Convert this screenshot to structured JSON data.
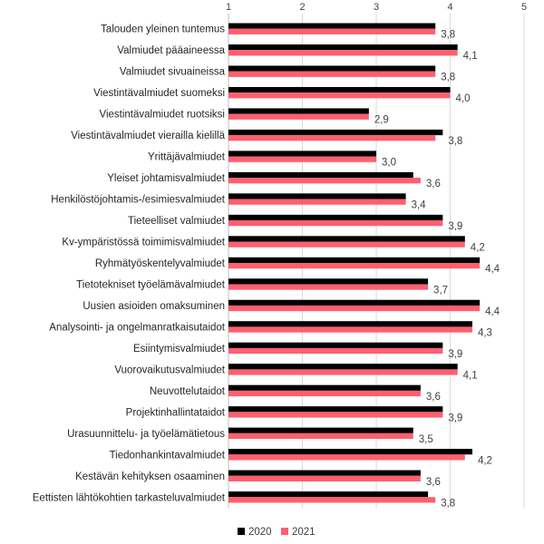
{
  "chart_data": {
    "type": "bar",
    "orientation": "horizontal",
    "title": "",
    "xlabel": "",
    "ylabel": "",
    "xlim": [
      1,
      5
    ],
    "xticks": [
      "1",
      "2",
      "3",
      "4",
      "5"
    ],
    "grid": true,
    "legend_position": "bottom",
    "categories": [
      "Talouden yleinen tuntemus",
      "Valmiudet pääaineessa",
      "Valmiudet sivuaineissa",
      "Viestintävalmiudet suomeksi",
      "Viestintävalmiudet ruotsiksi",
      "Viestintävalmiudet vierailla kielillä",
      "Yrittäjävalmiudet",
      "Yleiset johtamisvalmiudet",
      "Henkilöstöjohtamis-/esimiesvalmiudet",
      "Tieteelliset valmiudet",
      "Kv-ympäristössä toimimisvalmiudet",
      "Ryhmätyöskentelyvalmiudet",
      "Tietotekniset työelämävalmiudet",
      "Uusien asioiden omaksuminen",
      "Analysointi- ja ongelmanratkaisutaidot",
      "Esiintymisvalmiudet",
      "Vuorovaikutusvalmiudet",
      "Neuvottelutaidot",
      "Projektinhallintataidot",
      "Urasuunnittelu- ja työelämätietous",
      "Tiedonhankintavalmiudet",
      "Kestävän kehityksen osaaminen",
      "Eettisten lähtökohtien tarkasteluvalmiudet"
    ],
    "series": [
      {
        "name": "2020",
        "color": "#000000",
        "values": [
          3.8,
          4.1,
          3.8,
          4.0,
          2.9,
          3.9,
          3.0,
          3.5,
          3.4,
          3.9,
          4.2,
          4.4,
          3.7,
          4.4,
          4.3,
          3.9,
          4.1,
          3.6,
          3.9,
          3.5,
          4.3,
          3.6,
          3.7
        ]
      },
      {
        "name": "2021",
        "color": "#ff5f6e",
        "values": [
          3.8,
          4.1,
          3.8,
          4.0,
          2.9,
          3.8,
          3.0,
          3.6,
          3.4,
          3.9,
          4.2,
          4.4,
          3.7,
          4.4,
          4.3,
          3.9,
          4.1,
          3.6,
          3.9,
          3.5,
          4.2,
          3.6,
          3.8
        ]
      }
    ],
    "data_labels": [
      "3,8",
      "4,1",
      "3,8",
      "4,0",
      "2,9",
      "3,8",
      "3,0",
      "3,6",
      "3,4",
      "3,9",
      "4,2",
      "4,4",
      "3,7",
      "4,4",
      "4,3",
      "3,9",
      "4,1",
      "3,6",
      "3,9",
      "3,5",
      "4,2",
      "3,6",
      "3,8"
    ]
  }
}
